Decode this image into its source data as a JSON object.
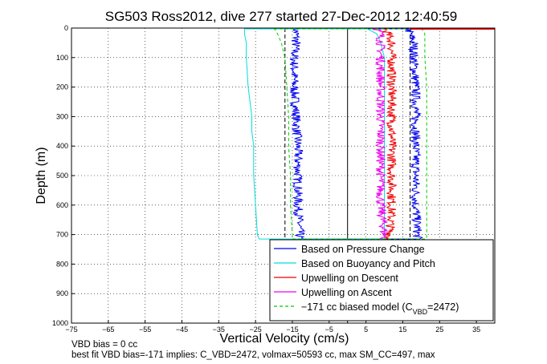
{
  "chart_data": {
    "type": "line",
    "title": "SG503 Ross2012, dive 277 started 27-Dec-2012 12:40:59",
    "xlabel": "Vertical Velocity (cm/s)",
    "ylabel": "Depth (m)",
    "xlim": [
      -75,
      40
    ],
    "ylim": [
      1000,
      0
    ],
    "x_ticks": [
      -75,
      -65,
      -55,
      -45,
      -35,
      -25,
      -15,
      -5,
      5,
      15,
      25,
      35
    ],
    "y_ticks": [
      0,
      100,
      200,
      300,
      400,
      500,
      600,
      700,
      800,
      900,
      1000
    ],
    "grid": true,
    "legend_position": "bottom-right",
    "series": [
      {
        "name": "Based on Pressure Change",
        "color": "#0000ee",
        "style": "solid",
        "noisy": true,
        "depth": [
          0,
          5,
          20,
          50,
          100,
          200,
          300,
          400,
          500,
          600,
          690,
          715
        ],
        "descent": [
          -14,
          -14,
          -14,
          -14,
          -14.5,
          -14.5,
          -14,
          -13.5,
          -13.5,
          -13.5,
          -13,
          -13
        ],
        "ascent": [
          17,
          16.5,
          17,
          18,
          18,
          18.5,
          18.5,
          18.5,
          18.5,
          18.5,
          19,
          19
        ]
      },
      {
        "name": "Based on Buoyancy and Pitch",
        "color": "#00dddd",
        "style": "solid",
        "noisy": false,
        "depth": [
          0,
          20,
          50,
          100,
          200,
          300,
          350,
          400,
          500,
          600,
          700,
          715
        ],
        "descent": [
          -28,
          -28,
          -27.5,
          -27.5,
          -27,
          -26,
          -26,
          -25.5,
          -25.5,
          -25,
          -24.5,
          -24
        ],
        "ascent": [
          5,
          8,
          9,
          10,
          10,
          10,
          10,
          10,
          10,
          10,
          10,
          10
        ]
      },
      {
        "name": "Upwelling on Descent",
        "color": "#ee0000",
        "style": "solid",
        "noisy": true,
        "depth": [
          0,
          20,
          50,
          100,
          200,
          300,
          400,
          500,
          600,
          700,
          715
        ],
        "values": [
          10,
          11,
          12,
          12,
          12,
          12,
          12,
          12,
          12,
          11.5,
          11
        ]
      },
      {
        "name": "Upwelling on Ascent",
        "color": "#ee00ee",
        "style": "solid",
        "noisy": true,
        "depth": [
          0,
          20,
          50,
          100,
          200,
          300,
          400,
          500,
          600,
          700,
          715
        ],
        "values": [
          8,
          9,
          9,
          9,
          9,
          9,
          9,
          9,
          9,
          10,
          10
        ]
      },
      {
        "name": "-171 cc biased model (C_VBD=2472)",
        "color": "#00cc00",
        "style": "dashed",
        "noisy": false,
        "depth": [
          0,
          20,
          50,
          100,
          200,
          300,
          400,
          500,
          600,
          700,
          715
        ],
        "descent": [
          -20,
          -19,
          -18,
          -17,
          -16.5,
          -16,
          -16,
          -15.5,
          -15.5,
          -15,
          -15
        ],
        "ascent": [
          20,
          21,
          21,
          21,
          21.5,
          21.5,
          21.5,
          21.5,
          21.5,
          21.5,
          21.5
        ]
      }
    ],
    "reference_lines": [
      {
        "x": 0,
        "color": "#000000",
        "style": "solid"
      },
      {
        "x": -17,
        "color": "#000000",
        "style": "dashed"
      },
      {
        "x": 17,
        "color": "#000000",
        "style": "dashed"
      }
    ],
    "surface_marker": {
      "depth": 0,
      "x_from": 17,
      "x_to": 40,
      "color": "#ee0000"
    },
    "legend": {
      "entries": [
        "Based on Pressure Change",
        "Based on Buoyancy and Pitch",
        "Upwelling on Descent",
        "Upwelling on Ascent",
        "−171 cc biased model (C",
        "VBD",
        "=2472)"
      ]
    },
    "notes": {
      "line1": "VBD bias = 0 cc",
      "line2": "best fit VBD bias=-171 implies: C_VBD=2472, volmax=50593 cc, max SM_CC=497, max"
    }
  }
}
